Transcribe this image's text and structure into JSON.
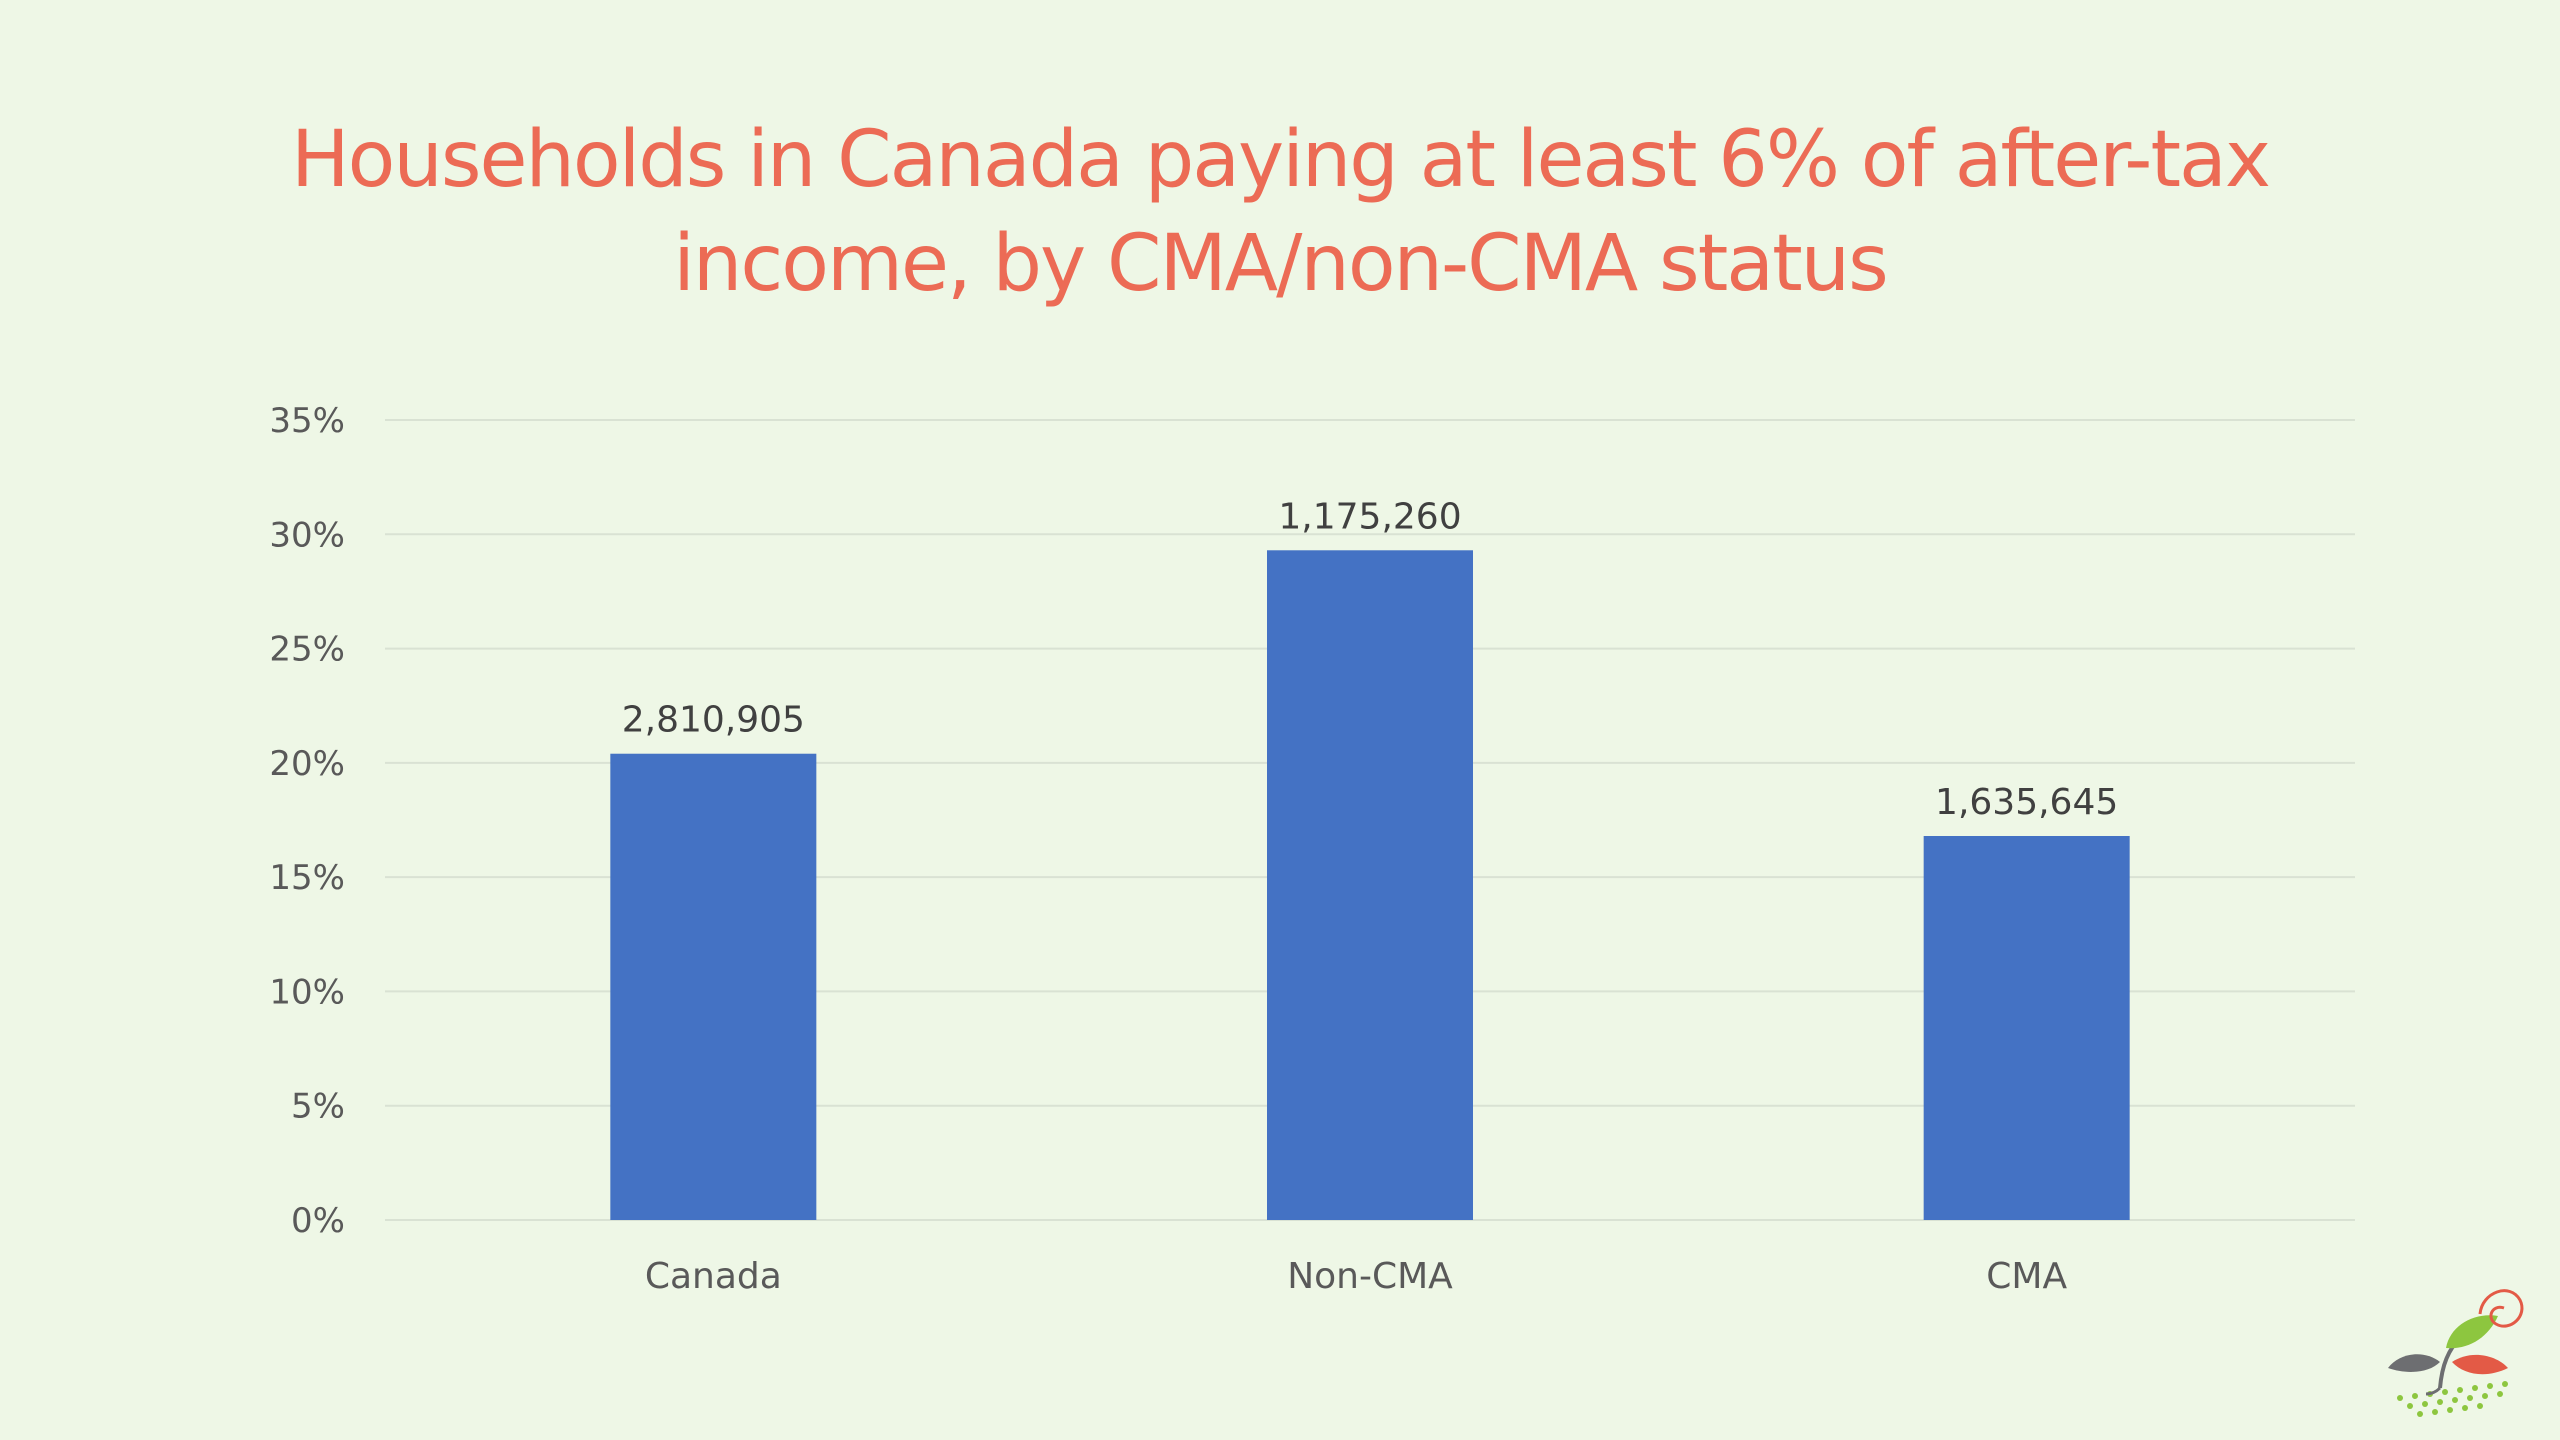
{
  "slide": {
    "background": "#eef7e6",
    "title_color": "#ec6b55"
  },
  "chart_data": {
    "type": "bar",
    "title": "Households in Canada paying at least 6% of after-tax income, by CMA/non-CMA status",
    "title_lines": [
      "Households in Canada paying at least 6% of after-tax",
      "income, by CMA/non-CMA status"
    ],
    "categories": [
      "Canada",
      "Non-CMA",
      "CMA"
    ],
    "values": [
      20.4,
      29.3,
      16.8
    ],
    "data_labels": [
      "2,810,905",
      "1,175,260",
      "1,635,645"
    ],
    "y_tick_labels": [
      "0%",
      "5%",
      "10%",
      "15%",
      "20%",
      "25%",
      "30%",
      "35%"
    ],
    "ylim": [
      0,
      35
    ],
    "y_ticks": [
      0,
      5,
      10,
      15,
      20,
      25,
      30,
      35
    ],
    "grid": true,
    "legend": "none",
    "bar_color": "#4472c4",
    "grid_color": "#d9e2d3",
    "tick_label_color": "#595959",
    "data_label_color": "#404040"
  },
  "logo": {
    "icon": "sprouting-plant-logo-icon"
  }
}
